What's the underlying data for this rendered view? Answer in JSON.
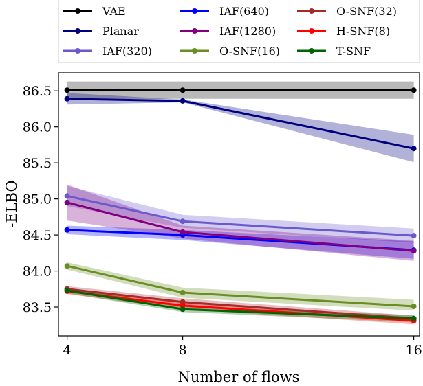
{
  "chart_data": {
    "type": "line",
    "title": "",
    "xlabel": "Number of flows",
    "ylabel": "-ELBO",
    "x": [
      4,
      8,
      16
    ],
    "x_tick_labels": [
      "4",
      "8",
      "16"
    ],
    "xlim": [
      3.7,
      16.2
    ],
    "ylim": [
      83.1,
      86.75
    ],
    "y_ticks": [
      83.5,
      84.0,
      84.5,
      85.0,
      85.5,
      86.0,
      86.5
    ],
    "y_tick_labels": [
      "83.5",
      "84.0",
      "84.5",
      "85.0",
      "85.5",
      "86.0",
      "86.5"
    ],
    "grid": false,
    "legend_position": "top (above plot), 3 columns",
    "series": [
      {
        "name": "VAE",
        "color": "#000000",
        "band_color": "#808080",
        "values": [
          86.51,
          86.51,
          86.51
        ],
        "lower": [
          86.39,
          86.39,
          86.39
        ],
        "upper": [
          86.63,
          86.63,
          86.63
        ]
      },
      {
        "name": "Planar",
        "color": "#000080",
        "band_color": "#000080",
        "values": [
          86.39,
          86.36,
          85.7
        ],
        "lower": [
          86.31,
          86.34,
          85.51
        ],
        "upper": [
          86.47,
          86.38,
          85.89
        ]
      },
      {
        "name": "IAF(320)",
        "color": "#6a5acd",
        "band_color": "#6a5acd",
        "values": [
          85.04,
          84.69,
          84.49
        ],
        "lower": [
          84.9,
          84.6,
          84.39
        ],
        "upper": [
          85.18,
          84.78,
          84.59
        ]
      },
      {
        "name": "IAF(640)",
        "color": "#0000ff",
        "band_color": "#0000ff",
        "values": [
          84.57,
          84.5,
          84.29
        ],
        "lower": [
          84.51,
          84.43,
          84.17
        ],
        "upper": [
          84.63,
          84.57,
          84.41
        ]
      },
      {
        "name": "IAF(1280)",
        "color": "#800080",
        "band_color": "#800080",
        "values": [
          84.95,
          84.54,
          84.28
        ],
        "lower": [
          84.7,
          84.45,
          84.14
        ],
        "upper": [
          85.2,
          84.63,
          84.42
        ]
      },
      {
        "name": "O-SNF(16)",
        "color": "#6b8e23",
        "band_color": "#6b8e23",
        "values": [
          84.07,
          83.7,
          83.51
        ],
        "lower": [
          84.02,
          83.63,
          83.45
        ],
        "upper": [
          84.12,
          83.77,
          83.6
        ]
      },
      {
        "name": "O-SNF(32)",
        "color": "#a52a2a",
        "band_color": "#a52a2a",
        "values": [
          83.75,
          83.57,
          83.34
        ],
        "lower": [
          83.71,
          83.52,
          83.3
        ],
        "upper": [
          83.79,
          83.62,
          83.38
        ]
      },
      {
        "name": "H-SNF(8)",
        "color": "#ff0000",
        "band_color": "#ff0000",
        "values": [
          83.72,
          83.52,
          83.31
        ],
        "lower": [
          83.68,
          83.47,
          83.26
        ],
        "upper": [
          83.76,
          83.57,
          83.36
        ]
      },
      {
        "name": "T-SNF",
        "color": "#006400",
        "band_color": "#006400",
        "values": [
          83.73,
          83.47,
          83.34
        ],
        "lower": [
          83.69,
          83.43,
          83.29
        ],
        "upper": [
          83.77,
          83.51,
          83.39
        ]
      }
    ]
  }
}
